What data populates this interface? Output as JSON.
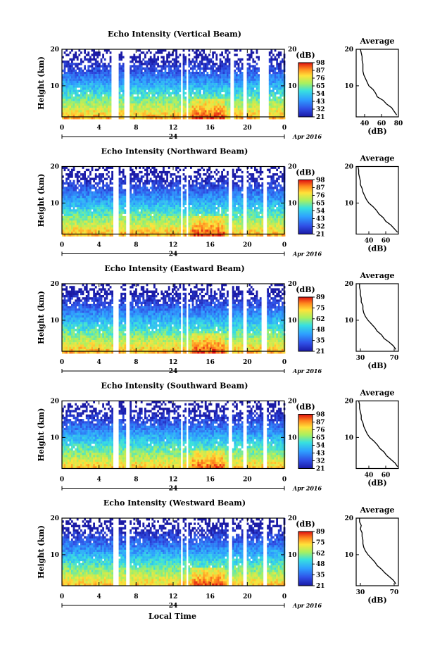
{
  "figure": {
    "xlabel": "Local Time",
    "date_label": "Apr 2016",
    "day_label": "24",
    "colorbar_label": "(dB)",
    "avg_title": "Average",
    "avg_xlabel": "(dB)"
  },
  "chart_data": [
    {
      "type": "heatmap",
      "title": "Echo Intensity (Vertical Beam)",
      "ylabel": "Height (km)",
      "xlim": [
        0,
        24
      ],
      "ylim": [
        1.5,
        20
      ],
      "xticks": [
        "0",
        "4",
        "8",
        "12",
        "16",
        "20",
        "0"
      ],
      "yticks": [
        "10",
        "20"
      ],
      "colorbar_ticks": [
        "21",
        "32",
        "43",
        "54",
        "65",
        "76",
        "87",
        "98"
      ],
      "gaps": [
        [
          5.3,
          6.1
        ],
        [
          6.7,
          7.2
        ],
        [
          12.8,
          13.0
        ],
        [
          13.3,
          13.5
        ],
        [
          18.0,
          18.4
        ],
        [
          19.4,
          19.9
        ],
        [
          21.3,
          22.3
        ]
      ],
      "profile": {
        "xlim": [
          30,
          80
        ],
        "xticks": [
          "40",
          "60",
          "80"
        ],
        "yticks": [
          "10",
          "20"
        ],
        "points": [
          [
            2,
            78
          ],
          [
            3,
            75
          ],
          [
            4,
            72
          ],
          [
            5,
            66
          ],
          [
            6,
            62
          ],
          [
            7,
            55
          ],
          [
            8,
            53
          ],
          [
            9,
            50
          ],
          [
            10,
            45
          ],
          [
            11,
            43
          ],
          [
            12,
            41
          ],
          [
            13,
            39
          ],
          [
            14,
            38
          ],
          [
            15,
            38
          ],
          [
            16,
            38
          ],
          [
            17,
            37
          ],
          [
            18,
            37
          ],
          [
            19,
            36
          ],
          [
            20,
            35
          ]
        ]
      }
    },
    {
      "type": "heatmap",
      "title": "Echo Intensity (Northward Beam)",
      "ylabel": "Height (km)",
      "xlim": [
        0,
        24
      ],
      "ylim": [
        1.5,
        20
      ],
      "xticks": [
        "0",
        "4",
        "8",
        "12",
        "16",
        "20",
        "0"
      ],
      "yticks": [
        "10",
        "20"
      ],
      "colorbar_ticks": [
        "21",
        "32",
        "43",
        "54",
        "65",
        "76",
        "87",
        "98"
      ],
      "gaps": [
        [
          5.5,
          6.1
        ],
        [
          6.8,
          7.3
        ],
        [
          12.7,
          13.0
        ],
        [
          13.3,
          13.5
        ],
        [
          17.9,
          18.3
        ],
        [
          19.4,
          19.9
        ],
        [
          21.6,
          22.0
        ]
      ],
      "profile": {
        "xlim": [
          25,
          75
        ],
        "xticks": [
          "40",
          "60"
        ],
        "yticks": [
          "10",
          "20"
        ],
        "points": [
          [
            2,
            74
          ],
          [
            3,
            70
          ],
          [
            4,
            66
          ],
          [
            5,
            60
          ],
          [
            6,
            57
          ],
          [
            7,
            52
          ],
          [
            8,
            49
          ],
          [
            9,
            45
          ],
          [
            10,
            40
          ],
          [
            11,
            37
          ],
          [
            12,
            35
          ],
          [
            13,
            33
          ],
          [
            14,
            32
          ],
          [
            15,
            30
          ],
          [
            16,
            30
          ],
          [
            17,
            29
          ],
          [
            18,
            28
          ],
          [
            19,
            28
          ],
          [
            20,
            27
          ]
        ]
      }
    },
    {
      "type": "heatmap",
      "title": "Echo Intensity (Eastward Beam)",
      "ylabel": "Height (km)",
      "xlim": [
        0,
        24
      ],
      "ylim": [
        1.5,
        20
      ],
      "xticks": [
        "0",
        "4",
        "8",
        "12",
        "16",
        "20",
        "0"
      ],
      "yticks": [
        "10",
        "20"
      ],
      "colorbar_ticks": [
        "21",
        "35",
        "48",
        "62",
        "75",
        "89"
      ],
      "gaps": [
        [
          5.4,
          6.0
        ],
        [
          6.8,
          7.2
        ],
        [
          12.7,
          13.0
        ],
        [
          13.3,
          13.5
        ],
        [
          17.8,
          18.3
        ],
        [
          19.4,
          19.8
        ],
        [
          21.5,
          22.0
        ]
      ],
      "profile": {
        "xlim": [
          25,
          75
        ],
        "xticks": [
          "30",
          "70"
        ],
        "yticks": [
          "10",
          "20"
        ],
        "points": [
          [
            2,
            72
          ],
          [
            3,
            69
          ],
          [
            4,
            64
          ],
          [
            5,
            58
          ],
          [
            6,
            55
          ],
          [
            7,
            50
          ],
          [
            8,
            47
          ],
          [
            9,
            43
          ],
          [
            10,
            39
          ],
          [
            11,
            36
          ],
          [
            12,
            34
          ],
          [
            13,
            33
          ],
          [
            14,
            33
          ],
          [
            15,
            31
          ],
          [
            16,
            31
          ],
          [
            17,
            30
          ],
          [
            18,
            30
          ],
          [
            19,
            29
          ],
          [
            20,
            29
          ]
        ]
      }
    },
    {
      "type": "heatmap",
      "title": "Echo Intensity (Southward Beam)",
      "ylabel": "Height (km)",
      "xlim": [
        0,
        24
      ],
      "ylim": [
        1.5,
        20
      ],
      "xticks": [
        "0",
        "4",
        "8",
        "12",
        "16",
        "20",
        "0"
      ],
      "yticks": [
        "10",
        "20"
      ],
      "colorbar_ticks": [
        "21",
        "32",
        "43",
        "54",
        "65",
        "76",
        "87",
        "98"
      ],
      "gaps": [
        [
          5.4,
          6.0
        ],
        [
          6.8,
          7.3
        ],
        [
          12.7,
          13.0
        ],
        [
          13.3,
          13.5
        ],
        [
          17.9,
          18.3
        ],
        [
          19.4,
          19.9
        ],
        [
          21.6,
          22.1
        ]
      ],
      "profile": {
        "xlim": [
          25,
          75
        ],
        "xticks": [
          "40",
          "60"
        ],
        "yticks": [
          "10",
          "20"
        ],
        "points": [
          [
            2,
            74
          ],
          [
            3,
            71
          ],
          [
            4,
            66
          ],
          [
            5,
            61
          ],
          [
            6,
            58
          ],
          [
            7,
            53
          ],
          [
            8,
            50
          ],
          [
            9,
            46
          ],
          [
            10,
            41
          ],
          [
            11,
            38
          ],
          [
            12,
            36
          ],
          [
            13,
            34
          ],
          [
            14,
            33
          ],
          [
            15,
            31
          ],
          [
            16,
            31
          ],
          [
            17,
            30
          ],
          [
            18,
            29
          ],
          [
            19,
            29
          ],
          [
            20,
            28
          ]
        ]
      }
    },
    {
      "type": "heatmap",
      "title": "Echo Intensity (Westward Beam)",
      "ylabel": "Height (km)",
      "xlim": [
        0,
        24
      ],
      "ylim": [
        1.5,
        20
      ],
      "xticks": [
        "0",
        "4",
        "8",
        "12",
        "16",
        "20",
        "0"
      ],
      "yticks": [
        "10",
        "20"
      ],
      "colorbar_ticks": [
        "21",
        "35",
        "48",
        "62",
        "75",
        "89"
      ],
      "gaps": [
        [
          5.4,
          6.0
        ],
        [
          6.9,
          7.3
        ],
        [
          12.8,
          13.0
        ],
        [
          13.3,
          13.5
        ],
        [
          17.8,
          18.3
        ],
        [
          19.4,
          19.9
        ],
        [
          21.6,
          22.0
        ]
      ],
      "profile": {
        "xlim": [
          25,
          75
        ],
        "xticks": [
          "30",
          "70"
        ],
        "yticks": [
          "10",
          "20"
        ],
        "points": [
          [
            2,
            72
          ],
          [
            3,
            69
          ],
          [
            4,
            64
          ],
          [
            5,
            59
          ],
          [
            6,
            55
          ],
          [
            7,
            50
          ],
          [
            8,
            47
          ],
          [
            9,
            43
          ],
          [
            10,
            39
          ],
          [
            11,
            36
          ],
          [
            12,
            34
          ],
          [
            13,
            33
          ],
          [
            14,
            33
          ],
          [
            15,
            32
          ],
          [
            16,
            32
          ],
          [
            17,
            30
          ],
          [
            18,
            31
          ],
          [
            19,
            29
          ],
          [
            20,
            29
          ]
        ]
      }
    }
  ]
}
